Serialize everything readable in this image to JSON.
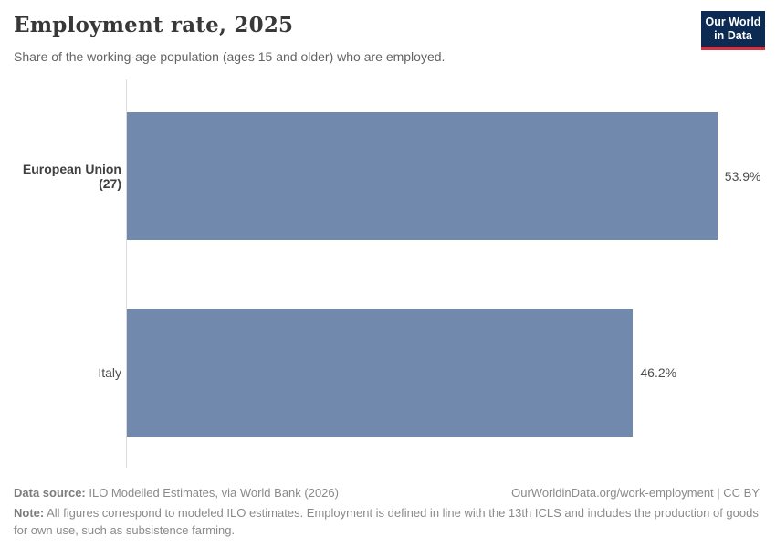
{
  "header": {
    "logo": {
      "line1": "Our World",
      "line2": "in Data"
    }
  },
  "chart_data": {
    "type": "bar",
    "orientation": "horizontal",
    "title": "Employment rate, 2025",
    "subtitle": "Share of the working-age population (ages 15 and older) who are employed.",
    "categories": [
      "European Union (27)",
      "Italy"
    ],
    "values": [
      53.9,
      46.2
    ],
    "value_labels": [
      "53.9%",
      "46.2%"
    ],
    "unit": "%",
    "bar_color": "#7189ad",
    "axis_color": "#dcdcdc",
    "xlim": [
      0,
      59
    ],
    "grid": false,
    "legend": "none",
    "x_axis_visible": false
  },
  "footer": {
    "data_source_label": "Data source:",
    "data_source_text": " ILO Modelled Estimates, via World Bank (2026)",
    "citation": "OurWorldinData.org/work-employment | CC BY",
    "note_label": "Note:",
    "note_text": " All figures correspond to modeled ILO estimates. Employment is defined in line with the 13th ICLS and includes the production of goods for own use, such as subsistence farming."
  },
  "colors": {
    "bar": "#7189ad",
    "logo_navy": "#0d2b52",
    "logo_red": "#cf3444",
    "title_text": "#383838",
    "footer_text": "#8a8a8a"
  }
}
